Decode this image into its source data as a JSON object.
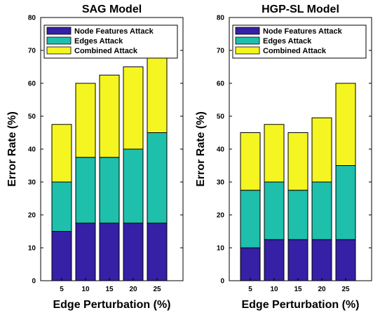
{
  "chart_data": [
    {
      "type": "bar",
      "stacked": true,
      "title": "SAG Model",
      "xlabel": "Edge Perturbation (%)",
      "ylabel": "Error Rate (%)",
      "ylim": [
        0,
        80
      ],
      "yticks": [
        0,
        10,
        20,
        30,
        40,
        50,
        60,
        70,
        80
      ],
      "grid": false,
      "legend_position": "top",
      "categories": [
        "5",
        "10",
        "15",
        "20",
        "25"
      ],
      "series": [
        {
          "name": "Node Features Attack",
          "color": "#3520a6",
          "values": [
            15,
            17.5,
            17.5,
            17.5,
            17.5
          ]
        },
        {
          "name": "Edges Attack",
          "color": "#1ec0ac",
          "values": [
            15,
            20,
            20,
            22.5,
            27.5
          ]
        },
        {
          "name": "Combined Attack",
          "color": "#f5f521",
          "values": [
            17.5,
            22.5,
            25,
            25,
            30
          ]
        }
      ]
    },
    {
      "type": "bar",
      "stacked": true,
      "title": "HGP-SL Model",
      "xlabel": "Edge Perturbation (%)",
      "ylabel": "Error Rate (%)",
      "ylim": [
        0,
        80
      ],
      "yticks": [
        0,
        10,
        20,
        30,
        40,
        50,
        60,
        70,
        80
      ],
      "grid": false,
      "legend_position": "top",
      "categories": [
        "5",
        "10",
        "15",
        "20",
        "25"
      ],
      "series": [
        {
          "name": "Node Features Attack",
          "color": "#3520a6",
          "values": [
            10,
            12.5,
            12.5,
            12.5,
            12.5
          ]
        },
        {
          "name": "Edges Attack",
          "color": "#1ec0ac",
          "values": [
            17.5,
            17.5,
            15,
            17.5,
            22.5
          ]
        },
        {
          "name": "Combined Attack",
          "color": "#f5f521",
          "values": [
            17.5,
            17.5,
            17.5,
            19.5,
            25
          ]
        }
      ]
    }
  ]
}
